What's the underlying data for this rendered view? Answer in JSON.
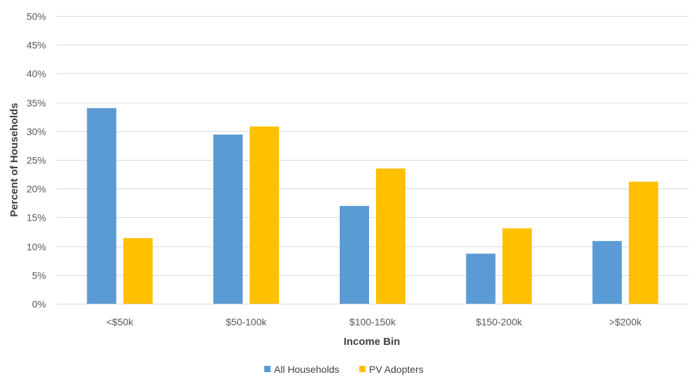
{
  "chart_data": {
    "type": "bar",
    "title": "",
    "xlabel": "Income Bin",
    "ylabel": "Percent of Households",
    "categories": [
      "<$50k",
      "$50-100k",
      "$100-150k",
      "$150-200k",
      ">$200k"
    ],
    "series": [
      {
        "name": "All Households",
        "color": "#5B9BD5",
        "values": [
          34.0,
          29.4,
          17.0,
          8.7,
          10.9
        ]
      },
      {
        "name": "PV Adopters",
        "color": "#FFC000",
        "values": [
          11.4,
          30.8,
          23.5,
          13.1,
          21.2
        ]
      }
    ],
    "ylim": [
      0,
      50
    ],
    "yticks": [
      0,
      5,
      10,
      15,
      20,
      25,
      30,
      35,
      40,
      45,
      50
    ],
    "ytick_labels": [
      "0%",
      "5%",
      "10%",
      "15%",
      "20%",
      "25%",
      "30%",
      "35%",
      "40%",
      "45%",
      "50%"
    ],
    "grid": true,
    "legend_position": "bottom"
  }
}
